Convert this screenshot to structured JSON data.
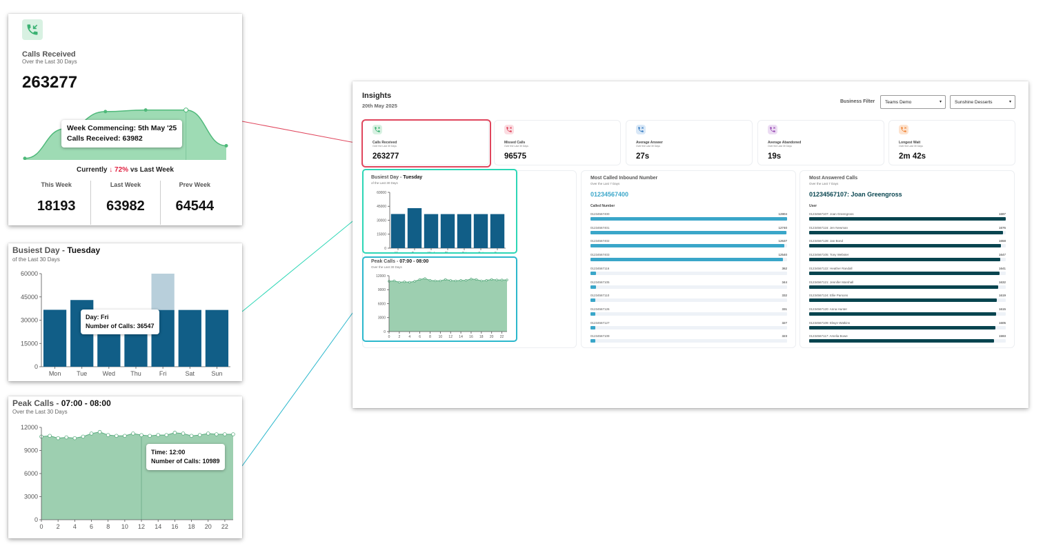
{
  "calls_received_zoom": {
    "label": "Calls Received",
    "sub": "Over the Last 30 Days",
    "value": "263277",
    "tooltip_line1": "Week Commencing: 5th May '25",
    "tooltip_line2": "Calls Received: 63982",
    "currently_prefix": "Currently",
    "currently_arrow": "↓",
    "currently_pct": "72%",
    "currently_suffix": "vs Last Week",
    "weeks": [
      {
        "label": "This Week",
        "value": "18193"
      },
      {
        "label": "Last Week",
        "value": "63982"
      },
      {
        "label": "Prev Week",
        "value": "64544"
      }
    ]
  },
  "busiest_zoom": {
    "title": "Busiest Day - ",
    "title_bold": "Tuesday",
    "sub": "of the Last 30 Days",
    "tooltip_line1": "Day: Fri",
    "tooltip_line2": "Number of Calls: 36547"
  },
  "peak_zoom": {
    "title": "Peak Calls - ",
    "title_bold": "07:00 - 08:00",
    "sub": "Over the Last 30 Days",
    "tooltip_line1": "Time: 12:00",
    "tooltip_line2": "Number of Calls: 10989"
  },
  "dashboard": {
    "title": "Insights",
    "date": "20th May 2025",
    "filter_label": "Business Filter",
    "filter1": "Teams Demo",
    "filter2": "Sunshine Desserts",
    "kpis": [
      {
        "label": "Calls Received",
        "sub": "Over the Last 30 Days",
        "value": "263277",
        "icon": "incoming-call-icon",
        "color": "#3bb273",
        "bg": "#d8f1e2"
      },
      {
        "label": "Missed Calls",
        "sub": "Over the Last 30 Days",
        "value": "96575",
        "icon": "missed-call-icon",
        "color": "#e0455c",
        "bg": "#fbdde2"
      },
      {
        "label": "Average Answer",
        "sub": "Over the Last 30 Days",
        "value": "27s",
        "icon": "answer-queue-icon",
        "color": "#3b7fc4",
        "bg": "#d9e8f7"
      },
      {
        "label": "Average Abandoned",
        "sub": "Over the Last 30 Days",
        "value": "19s",
        "icon": "abandoned-call-icon",
        "color": "#9a4fb5",
        "bg": "#ecdcf3"
      },
      {
        "label": "Longest Wait",
        "sub": "Over the Last 30 Days",
        "value": "2m 42s",
        "icon": "wait-call-icon",
        "color": "#f0873a",
        "bg": "#fde3cf"
      }
    ],
    "busiest": {
      "title": "Busiest Day - ",
      "title_bold": "Tuesday",
      "sub": "of the Last 30 Days"
    },
    "peak": {
      "title": "Peak Calls - ",
      "title_bold": "07:00 - 08:00",
      "sub": "Over the Last 30 Days"
    },
    "most_called": {
      "title": "Most Called Inbound Number",
      "sub": "Over the Last 7 Days",
      "highlight": "01234567400",
      "column": "Called Number",
      "accent": "#3aa6c9",
      "rows": [
        {
          "label": "01234567400",
          "value": 12804
        },
        {
          "label": "01234567401",
          "value": 12740
        },
        {
          "label": "01234567402",
          "value": 12637
        },
        {
          "label": "01234567403",
          "value": 12540
        },
        {
          "label": "01234567116",
          "value": 362
        },
        {
          "label": "01234567105",
          "value": 344
        },
        {
          "label": "01234567110",
          "value": 332
        },
        {
          "label": "01234567126",
          "value": 331
        },
        {
          "label": "01234567127",
          "value": 327
        },
        {
          "label": "01234567109",
          "value": 323
        }
      ]
    },
    "most_answered": {
      "title": "Most Answered Calls",
      "sub": "Over the Last 7 Days",
      "highlight": "01234567107: Joan Greengross",
      "column": "User",
      "accent": "#07444f",
      "rows": [
        {
          "label": "01234567107: Joan Greengross",
          "value": 1697
        },
        {
          "label": "01234567116: Jen Newman",
          "value": 1676
        },
        {
          "label": "01234567128: Jan Bond",
          "value": 1658
        },
        {
          "label": "01234567105: Tony Webster",
          "value": 1647
        },
        {
          "label": "01234567122: Heather Randall",
          "value": 1641
        },
        {
          "label": "01234567121: Jennifer Marshall",
          "value": 1632
        },
        {
          "label": "01234567124: Ellie Parsons",
          "value": 1619
        },
        {
          "label": "01234567120: Anna Hunter",
          "value": 1615
        },
        {
          "label": "01234567109: Elwyn Watkins",
          "value": 1605
        },
        {
          "label": "01234567117: Amelia Bowe",
          "value": 1593
        }
      ]
    }
  },
  "chart_data": [
    {
      "type": "area",
      "title": "Calls Received",
      "x": [
        "",
        "",
        "",
        "",
        "5th May '25",
        ""
      ],
      "values": [
        2000,
        40000,
        62000,
        64000,
        63982,
        18193
      ]
    },
    {
      "type": "bar",
      "title": "Busiest Day - Tuesday",
      "categories": [
        "Mon",
        "Tue",
        "Wed",
        "Thu",
        "Fri",
        "Sat",
        "Sun"
      ],
      "values": [
        36700,
        43000,
        36600,
        36600,
        36547,
        36600,
        36600
      ],
      "ylim": [
        0,
        60000
      ],
      "yticks": [
        0,
        15000,
        30000,
        45000,
        60000
      ],
      "highlight": "Fri",
      "color": "#115e87",
      "highlight_color": "#b8cfdb"
    },
    {
      "type": "area",
      "title": "Peak Calls - 07:00 - 08:00",
      "x": [
        0,
        1,
        2,
        3,
        4,
        5,
        6,
        7,
        8,
        9,
        10,
        11,
        12,
        13,
        14,
        15,
        16,
        17,
        18,
        19,
        20,
        21,
        22,
        23
      ],
      "xticks": [
        0,
        2,
        4,
        6,
        8,
        10,
        12,
        14,
        16,
        18,
        20,
        22
      ],
      "values": [
        10800,
        10900,
        10600,
        10700,
        10600,
        10800,
        11200,
        11400,
        11000,
        10900,
        10900,
        11200,
        10989,
        10900,
        11000,
        11000,
        11300,
        11200,
        10900,
        11000,
        11200,
        11100,
        11100,
        11100
      ],
      "ylim": [
        0,
        12000
      ],
      "yticks": [
        0,
        3000,
        6000,
        9000,
        12000
      ],
      "highlight": 12,
      "color": "#9dcfb0",
      "line_color": "#5aac7f"
    }
  ]
}
